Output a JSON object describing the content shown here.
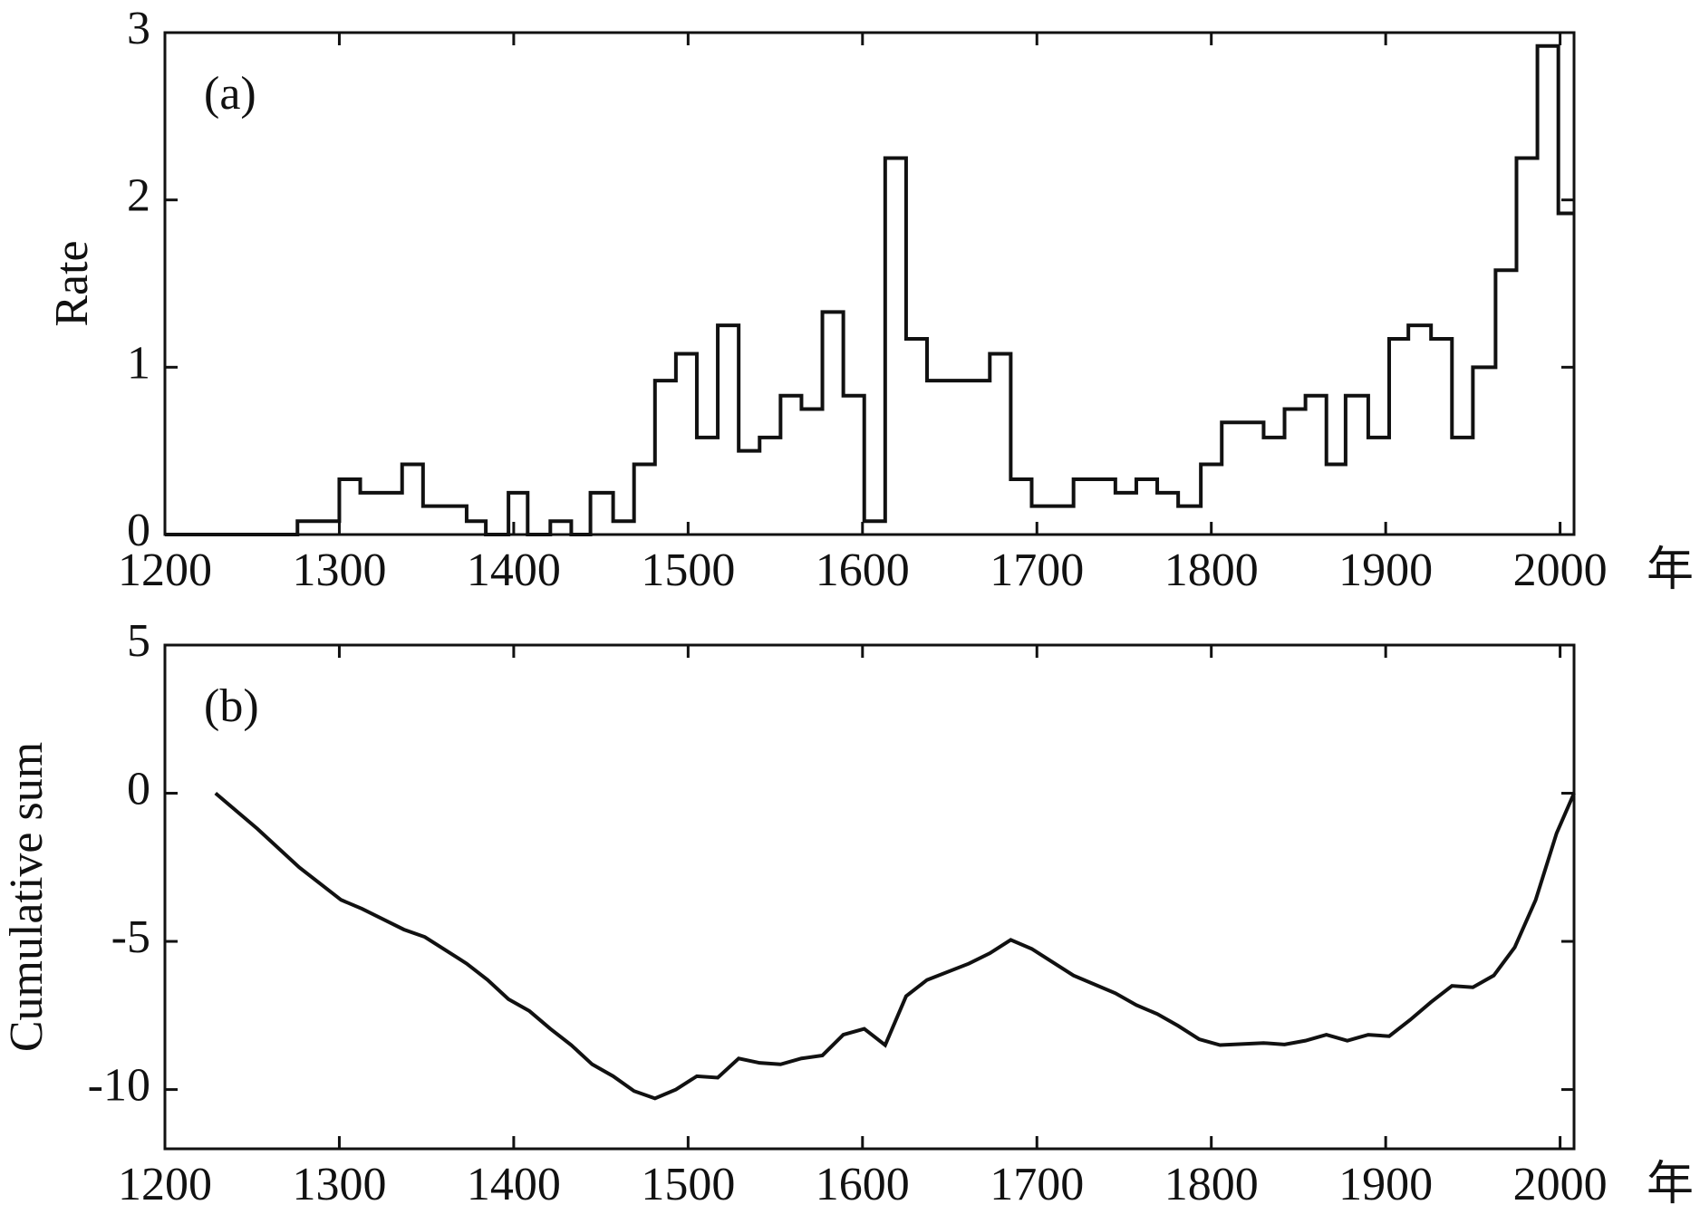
{
  "chart_data": [
    {
      "type": "step",
      "panel_label": "(a)",
      "ylabel": "Rate",
      "xlabel": "年",
      "color": "#111111",
      "x": [
        1200,
        1276,
        1300,
        1312,
        1336,
        1348,
        1373,
        1384,
        1397,
        1408,
        1421,
        1433,
        1444,
        1457,
        1469,
        1481,
        1493,
        1505,
        1517,
        1529,
        1541,
        1553,
        1565,
        1577,
        1589,
        1601,
        1613,
        1625,
        1637,
        1673,
        1685,
        1697,
        1721,
        1745,
        1757,
        1769,
        1781,
        1794,
        1806,
        1830,
        1842,
        1854,
        1866,
        1877,
        1890,
        1902,
        1913,
        1926,
        1938,
        1950,
        1963,
        1975,
        1987,
        1999,
        2008
      ],
      "values": [
        0,
        0.08,
        0.33,
        0.25,
        0.42,
        0.17,
        0.08,
        0,
        0.25,
        0,
        0.08,
        0,
        0.25,
        0.08,
        0.42,
        0.92,
        1.08,
        0.58,
        1.25,
        0.5,
        0.58,
        0.83,
        0.75,
        1.33,
        0.83,
        0.08,
        2.25,
        1.17,
        0.92,
        1.08,
        0.33,
        0.17,
        0.33,
        0.25,
        0.33,
        0.25,
        0.17,
        0.42,
        0.67,
        0.58,
        0.75,
        0.83,
        0.42,
        0.83,
        0.58,
        1.17,
        1.25,
        1.17,
        0.58,
        1.0,
        1.58,
        2.25,
        2.92,
        1.92,
        1.92
      ],
      "xlim": [
        1200,
        2008
      ],
      "xticks": [
        1200,
        1300,
        1400,
        1500,
        1600,
        1700,
        1800,
        1900,
        2000
      ],
      "ylim": [
        0,
        3
      ],
      "yticks": [
        0,
        1,
        2,
        3
      ]
    },
    {
      "type": "line",
      "panel_label": "(b)",
      "ylabel": "Cumulative sum",
      "xlabel": "年",
      "color": "#111111",
      "x": [
        1229,
        1253,
        1277,
        1301,
        1313,
        1337,
        1349,
        1373,
        1385,
        1397,
        1409,
        1421,
        1433,
        1445,
        1457,
        1469,
        1481,
        1493,
        1505,
        1517,
        1529,
        1541,
        1553,
        1565,
        1577,
        1589,
        1601,
        1613,
        1625,
        1637,
        1661,
        1673,
        1685,
        1697,
        1721,
        1745,
        1757,
        1769,
        1781,
        1793,
        1805,
        1830,
        1842,
        1854,
        1866,
        1878,
        1890,
        1902,
        1914,
        1926,
        1938,
        1950,
        1962,
        1974,
        1986,
        1998,
        2008
      ],
      "values": [
        0,
        -1.2,
        -2.5,
        -3.6,
        -3.9,
        -4.6,
        -4.85,
        -5.75,
        -6.3,
        -6.95,
        -7.35,
        -7.95,
        -8.5,
        -9.15,
        -9.55,
        -10.05,
        -10.3,
        -10.0,
        -9.55,
        -9.6,
        -8.95,
        -9.1,
        -9.15,
        -8.95,
        -8.85,
        -8.15,
        -7.95,
        -8.5,
        -6.85,
        -6.3,
        -5.75,
        -5.4,
        -4.95,
        -5.25,
        -6.15,
        -6.75,
        -7.15,
        -7.45,
        -7.85,
        -8.3,
        -8.5,
        -8.43,
        -8.48,
        -8.35,
        -8.15,
        -8.35,
        -8.15,
        -8.2,
        -7.65,
        -7.05,
        -6.5,
        -6.55,
        -6.15,
        -5.2,
        -3.6,
        -1.35,
        0
      ],
      "xlim": [
        1200,
        2008
      ],
      "xticks": [
        1200,
        1300,
        1400,
        1500,
        1600,
        1700,
        1800,
        1900,
        2000
      ],
      "ylim": [
        -12,
        5
      ],
      "yticks": [
        -10,
        -5,
        0,
        5
      ]
    }
  ]
}
